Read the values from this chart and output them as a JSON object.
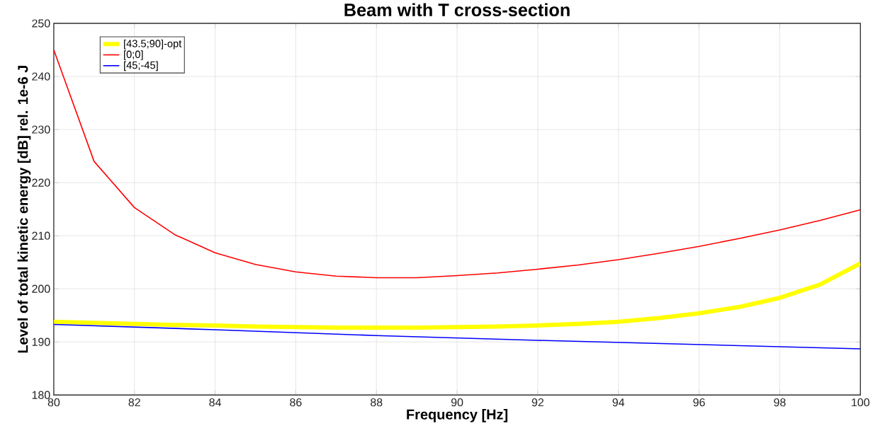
{
  "chart_data": {
    "type": "line",
    "title": "Beam with T cross-section",
    "xlabel": "Frequency [Hz]",
    "ylabel": "Level of total kinetic energy [dB] rel. 1e-6 J",
    "x": [
      80,
      81,
      82,
      83,
      84,
      85,
      86,
      87,
      88,
      89,
      90,
      91,
      92,
      93,
      94,
      95,
      96,
      97,
      98,
      99,
      100
    ],
    "series": [
      {
        "name": "[43.5;90]-opt",
        "color": "#ffff00",
        "values": [
          193.8,
          193.6,
          193.4,
          193.2,
          193.1,
          192.9,
          192.8,
          192.7,
          192.7,
          192.7,
          192.8,
          192.9,
          193.1,
          193.4,
          193.8,
          194.5,
          195.4,
          196.6,
          198.3,
          200.8,
          204.8
        ]
      },
      {
        "name": "[0;0]",
        "color": "#ff0000",
        "values": [
          245,
          224,
          215.3,
          210.2,
          206.8,
          204.6,
          203.2,
          202.4,
          202.1,
          202.1,
          202.5,
          203.0,
          203.7,
          204.5,
          205.5,
          206.7,
          208.0,
          209.5,
          211.1,
          212.9,
          214.9
        ]
      },
      {
        "name": "[45;-45]",
        "color": "#0000ff",
        "x": [
          80,
          84,
          88,
          92,
          96,
          100
        ],
        "values": [
          193.3,
          192.3,
          191.2,
          190.3,
          189.5,
          188.7
        ]
      }
    ],
    "xlim": [
      80,
      100
    ],
    "ylim": [
      180,
      250
    ],
    "xticks": [
      80,
      82,
      84,
      86,
      88,
      90,
      92,
      94,
      96,
      98,
      100
    ],
    "yticks": [
      180,
      190,
      200,
      210,
      220,
      230,
      240,
      250
    ],
    "grid": true,
    "legend": "top left"
  }
}
